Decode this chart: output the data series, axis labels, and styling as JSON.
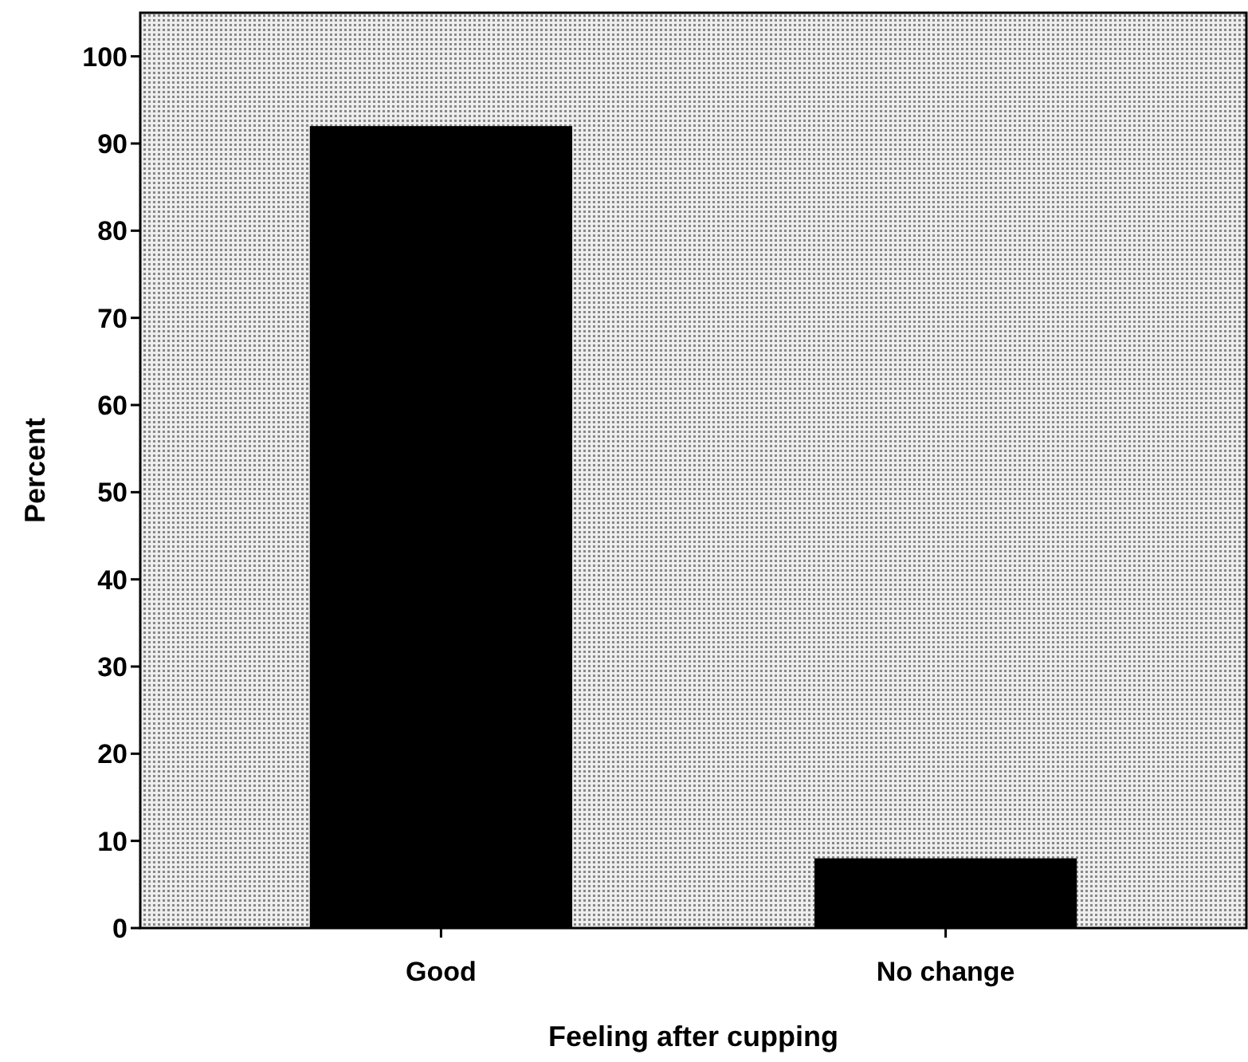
{
  "chart_data": {
    "type": "bar",
    "xlabel": "Feeling after cupping",
    "ylabel": "Percent",
    "categories": [
      "Good",
      "No change"
    ],
    "values": [
      92,
      8
    ],
    "color": "#000000",
    "ylim": [
      0,
      105
    ],
    "yticks": [
      0,
      10,
      20,
      30,
      40,
      50,
      60,
      70,
      80,
      90,
      100
    ],
    "grid": false
  }
}
